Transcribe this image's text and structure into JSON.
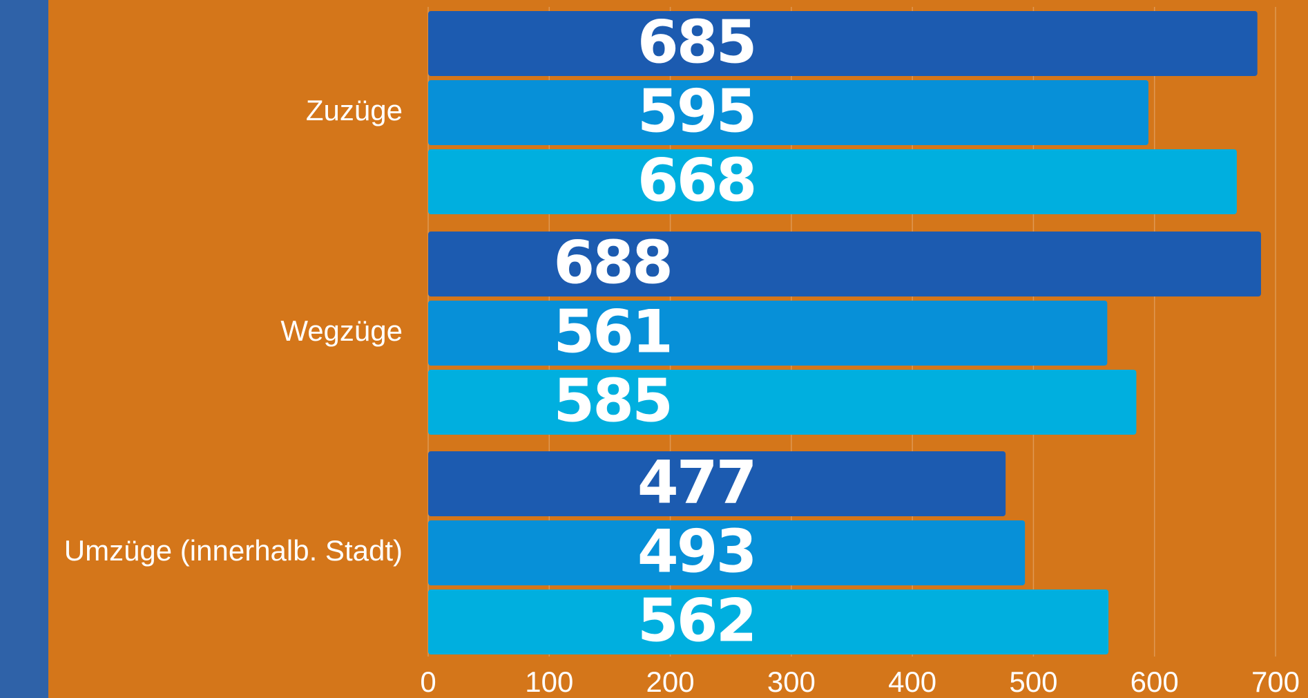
{
  "chart_data": {
    "type": "bar",
    "orientation": "horizontal",
    "categories": [
      "Zuzüge",
      "Wegzüge",
      "Umzüge (innerhalb. Stadt)"
    ],
    "series": [
      {
        "color": "#1c5bb0",
        "values": [
          685,
          688,
          477
        ]
      },
      {
        "color": "#0790d8",
        "values": [
          595,
          561,
          493
        ]
      },
      {
        "color": "#00afdf",
        "values": [
          668,
          585,
          562
        ]
      }
    ],
    "xlim": [
      0,
      700
    ],
    "xticks": [
      0,
      100,
      200,
      300,
      400,
      500,
      600,
      700
    ],
    "grid": true
  }
}
